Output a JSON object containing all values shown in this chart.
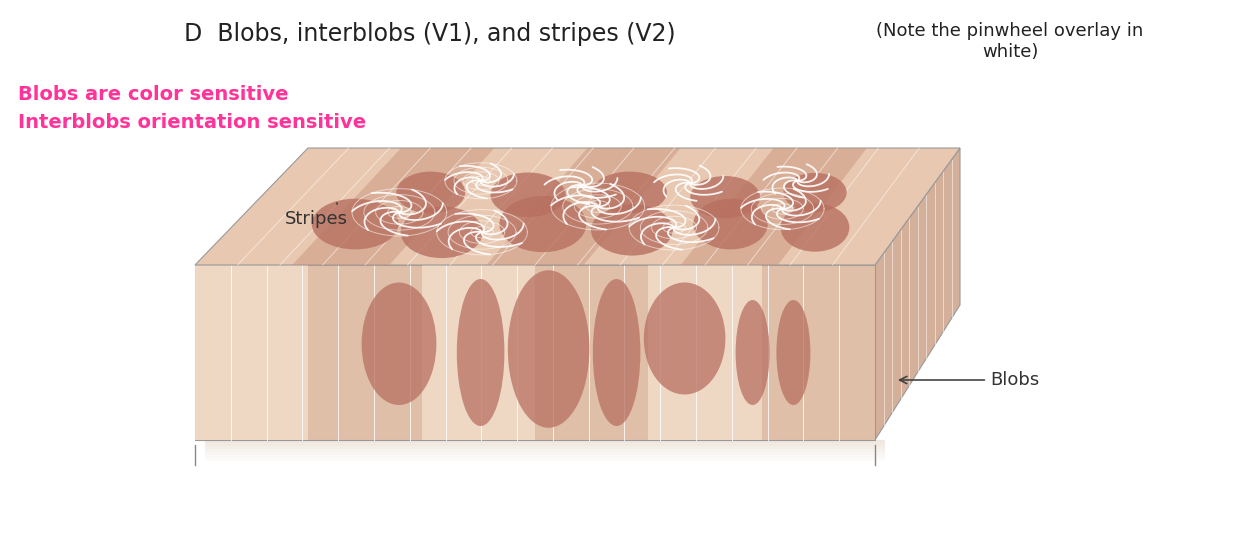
{
  "title": "D  Blobs, interblobs (V1), and stripes (V2)",
  "note": "(Note the pinwheel overlay in\nwhite)",
  "label_blobs_color": "Blobs are color sensitive",
  "label_interblobs_color": "Interblobs orientation sensitive",
  "label_stripes": "Stripes",
  "label_blobs": "Blobs",
  "color_label1": "#FF3399",
  "color_label2": "#FF3399",
  "bg_color": "#FFFFFF",
  "block_top_light": "#E8C8B0",
  "block_top_dark": "#C8907A",
  "block_front_light": "#EED8C4",
  "block_front_dark": "#C8907A",
  "block_right_color": "#D4B09A",
  "blob_color": "#B87060",
  "pinwheel_color": "#FFFFFF",
  "title_fontsize": 17,
  "note_fontsize": 13,
  "label_fontsize": 14,
  "annotation_fontsize": 13
}
